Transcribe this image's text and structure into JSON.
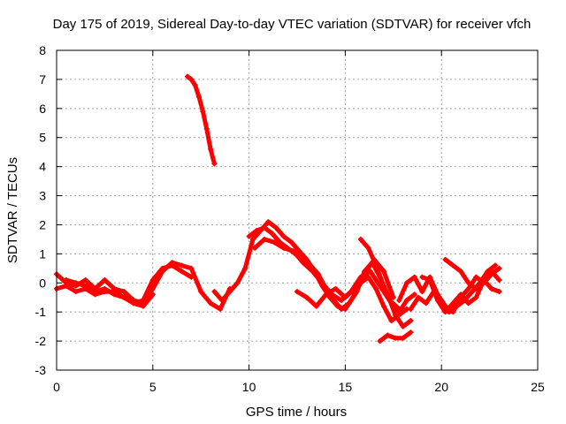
{
  "chart_data": {
    "type": "scatter",
    "title": "Day 175 of 2019, Sidereal Day-to-day VTEC variation (SDTVAR) for receiver vfch",
    "xlabel": "GPS time / hours",
    "ylabel": "SDTVAR / TECUs",
    "xlim": [
      0,
      25
    ],
    "ylim": [
      -3,
      8
    ],
    "xticks": [
      "0",
      "5",
      "10",
      "15",
      "20",
      "25"
    ],
    "yticks": [
      "-3",
      "-2",
      "-1",
      "0",
      "1",
      "2",
      "3",
      "4",
      "5",
      "6",
      "7",
      "8"
    ],
    "grid": true,
    "marker": "plus",
    "color": "#ff0000",
    "series": [
      {
        "name": "arc-1",
        "x": [
          0.0,
          0.5,
          1.0,
          1.5,
          2.0,
          2.5,
          3.0,
          3.5,
          4.0,
          4.5,
          5.0,
          5.5,
          6.0,
          6.5,
          7.0,
          7.5,
          8.0,
          8.5,
          9.0
        ],
        "y": [
          0.3,
          0.0,
          -0.1,
          0.1,
          -0.2,
          0.1,
          -0.2,
          -0.3,
          -0.6,
          -0.7,
          -0.2,
          0.4,
          0.7,
          0.6,
          0.5,
          -0.3,
          -0.7,
          -0.9,
          -0.2
        ]
      },
      {
        "name": "arc-2",
        "x": [
          0.0,
          0.5,
          1.0,
          1.5,
          2.0,
          2.5,
          3.0,
          3.5,
          4.0,
          4.5,
          5.0,
          5.5,
          6.0,
          6.5,
          7.0
        ],
        "y": [
          -0.2,
          -0.1,
          -0.3,
          -0.2,
          -0.4,
          -0.3,
          -0.3,
          -0.5,
          -0.7,
          -0.6,
          0.1,
          0.5,
          0.6,
          0.4,
          0.2
        ]
      },
      {
        "name": "arc-3",
        "x": [
          0.5,
          1.0,
          1.5,
          2.0,
          2.5,
          3.0,
          3.5,
          4.0,
          4.5,
          5.0
        ],
        "y": [
          0.1,
          0.0,
          -0.1,
          -0.3,
          -0.2,
          -0.4,
          -0.5,
          -0.7,
          -0.8,
          -0.4
        ]
      },
      {
        "name": "arc-4",
        "x": [
          6.8,
          7.0,
          7.2,
          7.4,
          7.6,
          7.8,
          8.0,
          8.2
        ],
        "y": [
          7.1,
          7.0,
          6.8,
          6.4,
          5.9,
          5.3,
          4.6,
          4.1
        ]
      },
      {
        "name": "arc-5",
        "x": [
          8.2,
          8.6,
          9.0,
          9.4,
          9.8,
          10.2,
          10.6,
          11.0,
          11.4,
          11.8,
          12.2,
          12.6,
          13.0,
          13.4,
          13.8,
          14.2,
          14.6,
          15.0,
          15.4,
          15.8,
          16.2,
          16.6,
          17.0,
          17.4,
          17.8,
          18.2
        ],
        "y": [
          -0.3,
          -0.6,
          -0.3,
          0.0,
          0.5,
          1.5,
          1.8,
          2.1,
          1.9,
          1.6,
          1.4,
          1.1,
          0.8,
          0.4,
          -0.1,
          -0.5,
          -0.8,
          -0.9,
          -0.5,
          0.0,
          0.2,
          -0.2,
          -0.8,
          -1.3,
          -1.1,
          -0.9
        ]
      },
      {
        "name": "arc-6",
        "x": [
          10.0,
          10.4,
          10.8,
          11.2,
          11.6,
          12.0,
          12.4,
          12.8,
          13.2,
          13.6,
          14.0,
          14.4,
          14.8,
          15.2,
          15.6,
          16.0,
          16.4,
          16.8,
          17.2,
          17.6,
          18.0,
          18.4
        ],
        "y": [
          1.6,
          1.8,
          1.9,
          1.7,
          1.4,
          1.2,
          1.0,
          0.9,
          0.6,
          0.3,
          -0.2,
          -0.6,
          -0.9,
          -0.7,
          -0.3,
          0.4,
          0.7,
          0.2,
          -0.4,
          -1.1,
          -1.5,
          -1.3
        ]
      },
      {
        "name": "arc-7",
        "x": [
          10.3,
          10.8,
          11.3,
          11.8,
          12.3,
          12.8,
          13.3,
          13.8,
          14.3,
          14.8,
          15.3,
          15.8,
          16.3,
          16.8,
          17.3,
          17.8
        ],
        "y": [
          1.2,
          1.5,
          1.4,
          1.2,
          1.1,
          0.7,
          0.4,
          0.0,
          -0.4,
          -0.6,
          -0.3,
          0.2,
          0.4,
          -0.1,
          -0.6,
          -0.9
        ]
      },
      {
        "name": "arc-8",
        "x": [
          12.5,
          13.0,
          13.5,
          14.0,
          14.5,
          15.0,
          15.5,
          16.0,
          16.5,
          17.0,
          17.5
        ],
        "y": [
          -0.3,
          -0.5,
          -0.8,
          -0.4,
          -0.2,
          -0.5,
          -0.2,
          0.3,
          0.8,
          0.4,
          -0.5
        ]
      },
      {
        "name": "arc-9",
        "x": [
          15.8,
          16.2,
          16.6,
          17.0,
          17.4,
          17.8,
          18.2,
          18.6
        ],
        "y": [
          1.5,
          1.2,
          0.6,
          -0.1,
          -0.7,
          -1.0,
          -0.6,
          -0.4
        ]
      },
      {
        "name": "arc-10",
        "x": [
          16.8,
          17.2,
          17.6,
          18.0,
          18.4
        ],
        "y": [
          -2.0,
          -1.8,
          -1.9,
          -1.9,
          -1.7
        ]
      },
      {
        "name": "arc-11",
        "x": [
          17.8,
          18.2,
          18.6,
          19.0,
          19.4,
          19.8,
          20.2,
          20.6,
          21.0,
          21.4,
          21.8,
          22.2,
          22.6,
          23.0
        ],
        "y": [
          -0.6,
          0.0,
          0.2,
          -0.3,
          0.2,
          -0.4,
          -0.8,
          -1.0,
          -0.5,
          -0.2,
          0.2,
          0.0,
          0.3,
          0.5
        ]
      },
      {
        "name": "arc-12",
        "x": [
          18.4,
          18.8,
          19.2,
          19.6,
          20.0,
          20.4,
          20.8,
          21.2,
          21.6,
          22.0,
          22.4,
          22.8
        ],
        "y": [
          -0.9,
          -0.5,
          -0.7,
          -0.3,
          -0.6,
          -1.0,
          -0.8,
          -0.6,
          -0.3,
          0.0,
          0.4,
          0.6
        ]
      },
      {
        "name": "arc-13",
        "x": [
          19.0,
          19.4,
          19.8,
          20.2,
          20.6,
          21.0,
          21.4,
          21.8,
          22.2,
          22.6,
          23.0
        ],
        "y": [
          0.2,
          0.1,
          -0.6,
          -1.0,
          -0.7,
          -0.4,
          -0.7,
          -0.5,
          0.1,
          -0.2,
          -0.3
        ]
      },
      {
        "name": "arc-14",
        "x": [
          20.2,
          20.6,
          21.0,
          21.4,
          21.8,
          22.2,
          22.6,
          23.0
        ],
        "y": [
          0.8,
          0.6,
          0.4,
          0.0,
          -0.2,
          0.2,
          0.4,
          0.1
        ]
      }
    ]
  }
}
